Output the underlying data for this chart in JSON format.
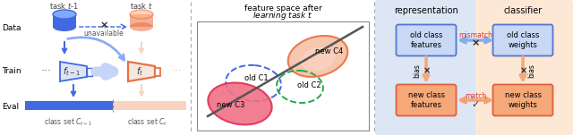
{
  "panel1": {
    "task_t1_label": "task $t$-1",
    "task_t_label": "task $t$",
    "data_label": "Data",
    "train_label": "Train",
    "eval_label": "Eval",
    "unavailable_label": "unavailable",
    "class_set_t1": "class set $C_{t-1}$",
    "class_set_t": "class set $C_t$",
    "blue": "#4169E1",
    "blue_light": "#8aacf5",
    "blue_very_light": "#c5d4f8",
    "orange": "#E87040",
    "orange_light": "#f5b898",
    "orange_very_light": "#fad4c0"
  },
  "panel2": {
    "title_line1": "feature space after",
    "title_line2": "learning task $t$",
    "new_c4": "new C4",
    "old_c1": "old C1",
    "old_c2": "old C2",
    "new_c3": "new C3"
  },
  "panel3": {
    "rep_title": "representation",
    "cls_title": "classifier",
    "old_feat": "old class\nfeatures",
    "new_feat": "new class\nfeatures",
    "old_weights": "old class\nweights",
    "new_weights": "new class\nweights",
    "mismatch": "mismatch",
    "match": "match",
    "bias_label": "bias"
  }
}
